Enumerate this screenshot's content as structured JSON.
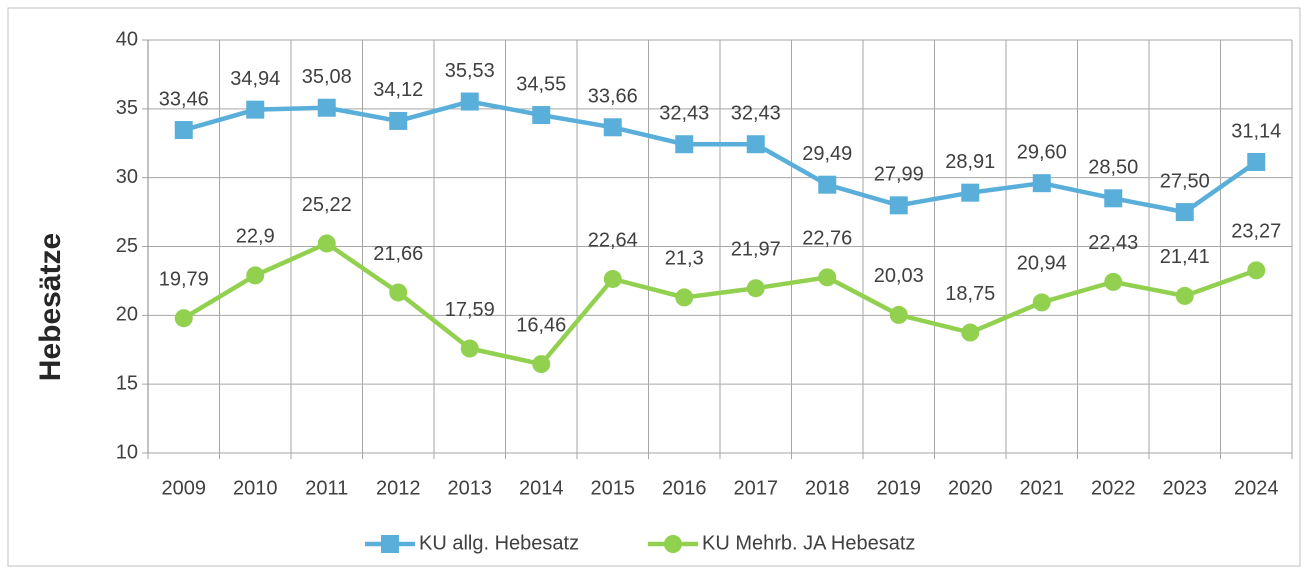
{
  "chart_data": {
    "type": "line",
    "y_label": "Hebesätze",
    "categories": [
      "2009",
      "2010",
      "2011",
      "2012",
      "2013",
      "2014",
      "2015",
      "2016",
      "2017",
      "2018",
      "2019",
      "2020",
      "2021",
      "2022",
      "2023",
      "2024"
    ],
    "series": [
      {
        "name": "KU allg. Hebesatz",
        "color": "#5aafda",
        "marker": "square",
        "values": [
          33.46,
          34.94,
          35.08,
          34.12,
          35.53,
          34.55,
          33.66,
          32.43,
          32.43,
          29.49,
          27.99,
          28.91,
          29.6,
          28.5,
          27.5,
          31.14
        ],
        "value_labels": [
          "33,46",
          "34,94",
          "35,08",
          "34,12",
          "35,53",
          "34,55",
          "33,66",
          "32,43",
          "32,43",
          "29,49",
          "27,99",
          "28,91",
          "29,60",
          "28,50",
          "27,50",
          "31,14"
        ]
      },
      {
        "name": "KU Mehrb. JA Hebesatz",
        "color": "#92d050",
        "marker": "circle",
        "values": [
          19.79,
          22.9,
          25.22,
          21.66,
          17.59,
          16.46,
          22.64,
          21.3,
          21.97,
          22.76,
          20.03,
          18.75,
          20.94,
          22.43,
          21.41,
          23.27
        ],
        "value_labels": [
          "19,79",
          "22,9",
          "25,22",
          "21,66",
          "17,59",
          "16,46",
          "22,64",
          "21,3",
          "21,97",
          "22,76",
          "20,03",
          "18,75",
          "20,94",
          "22,43",
          "21,41",
          "23,27"
        ]
      }
    ],
    "ylim": [
      10,
      40
    ],
    "yticks": [
      10,
      15,
      20,
      25,
      30,
      35,
      40
    ],
    "grid": true,
    "legend": "bottom"
  }
}
